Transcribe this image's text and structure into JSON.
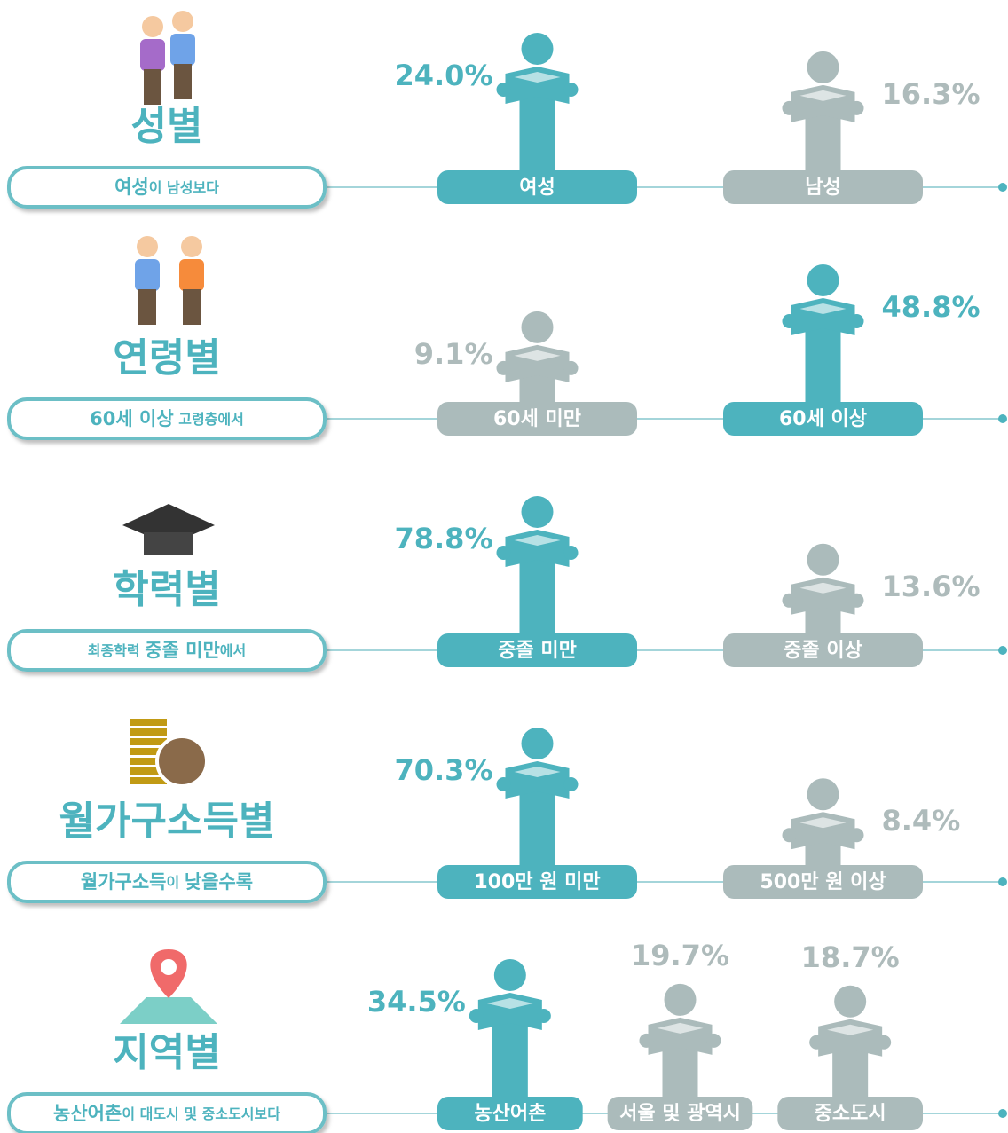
{
  "sections": [
    {
      "title": "성별",
      "caption": [
        {
          "text": "여성",
          "em": true
        },
        {
          "text": "이 남성보다",
          "em": false
        }
      ],
      "groups": [
        {
          "label": "여성",
          "value": 24.0,
          "value_label": "24.0%",
          "color": "#4db3be"
        },
        {
          "label": "남성",
          "value": 16.3,
          "value_label": "16.3%",
          "color": "#abbbbb"
        }
      ]
    },
    {
      "title": "연령별",
      "caption": [
        {
          "text": "60세 이상",
          "em": true
        },
        {
          "text": " 고령층에서",
          "em": false
        }
      ],
      "groups": [
        {
          "label": "60세 미만",
          "value": 9.1,
          "value_label": "9.1%",
          "color": "#abbbbb"
        },
        {
          "label": "60세 이상",
          "value": 48.8,
          "value_label": "48.8%",
          "color": "#4db3be"
        }
      ]
    },
    {
      "title": "학력별",
      "caption": [
        {
          "text": "최종학력 ",
          "em": false
        },
        {
          "text": "중졸 미만",
          "em": true
        },
        {
          "text": "에서",
          "em": false
        }
      ],
      "groups": [
        {
          "label": "중졸 미만",
          "value": 78.8,
          "value_label": "78.8%",
          "color": "#4db3be"
        },
        {
          "label": "중졸 이상",
          "value": 13.6,
          "value_label": "13.6%",
          "color": "#abbbbb"
        }
      ]
    },
    {
      "title": "월가구소득별",
      "caption": [
        {
          "text": "월가구소득",
          "em": true
        },
        {
          "text": "이 ",
          "em": false
        },
        {
          "text": "낮을수록",
          "em": true
        }
      ],
      "groups": [
        {
          "label": "100만 원 미만",
          "value": 70.3,
          "value_label": "70.3%",
          "color": "#4db3be"
        },
        {
          "label": "500만 원 이상",
          "value": 8.4,
          "value_label": "8.4%",
          "color": "#abbbbb"
        }
      ]
    },
    {
      "title": "지역별",
      "caption": [
        {
          "text": "농산어촌",
          "em": true
        },
        {
          "text": "이 대도시 및 중소도시보다",
          "em": false
        }
      ],
      "groups": [
        {
          "label": "농산어촌",
          "value": 34.5,
          "value_label": "34.5%",
          "color": "#4db3be"
        },
        {
          "label": "서울 및 광역시",
          "value": 19.7,
          "value_label": "19.7%",
          "color": "#abbbbb"
        },
        {
          "label": "중소도시",
          "value": 18.7,
          "value_label": "18.7%",
          "color": "#abbbbb"
        }
      ]
    }
  ]
}
